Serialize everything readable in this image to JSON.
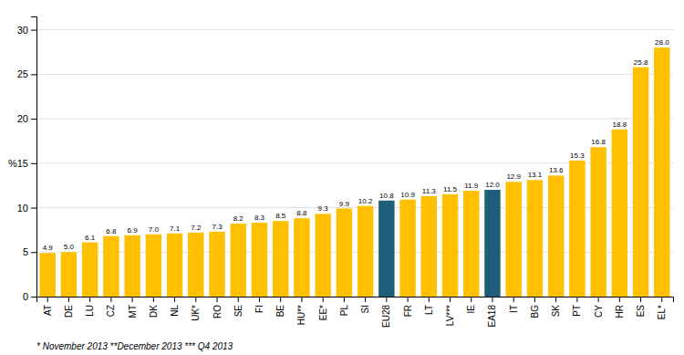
{
  "chart_data": {
    "type": "bar",
    "categories": [
      "AT",
      "DE",
      "LU",
      "CZ",
      "MT",
      "DK",
      "NL",
      "UK*",
      "RO",
      "SE",
      "FI",
      "BE",
      "HU**",
      "EE*",
      "PL",
      "SI",
      "EU28",
      "FR",
      "LT",
      "LV***",
      "IE",
      "EA18",
      "IT",
      "BG",
      "SK",
      "PT",
      "CY",
      "HR",
      "ES",
      "EL*"
    ],
    "values": [
      4.9,
      5.0,
      6.1,
      6.8,
      6.9,
      7.0,
      7.1,
      7.2,
      7.3,
      8.2,
      8.3,
      8.5,
      8.8,
      9.3,
      9.9,
      10.2,
      10.8,
      10.9,
      11.3,
      11.5,
      11.9,
      12.0,
      12.9,
      13.1,
      13.6,
      15.3,
      16.8,
      18.8,
      25.8,
      28.0
    ],
    "value_labels": [
      "4.9",
      "5.0",
      "6.1",
      "6.8",
      "6.9",
      "7.0",
      "7.1",
      "7.2",
      "7.3",
      "8.2",
      "8.3",
      "8.5",
      "8.8",
      "9.3",
      "9.9",
      "10.2",
      "10.8",
      "10.9",
      "11.3",
      "11.5",
      "11.9",
      "12.0",
      "12.9",
      "13.1",
      "13.6",
      "15.3",
      "16.8",
      "18.8",
      "25.8",
      "28.0"
    ],
    "colors": [
      "#FFC000",
      "#FFC000",
      "#FFC000",
      "#FFC000",
      "#FFC000",
      "#FFC000",
      "#FFC000",
      "#FFC000",
      "#FFC000",
      "#FFC000",
      "#FFC000",
      "#FFC000",
      "#FFC000",
      "#FFC000",
      "#FFC000",
      "#FFC000",
      "#1F5E7A",
      "#FFC000",
      "#FFC000",
      "#FFC000",
      "#FFC000",
      "#1F5E7A",
      "#FFC000",
      "#FFC000",
      "#FFC000",
      "#FFC000",
      "#FFC000",
      "#FFC000",
      "#FFC000",
      "#FFC000"
    ],
    "ylim": [
      0,
      31.5
    ],
    "yticks": [
      0,
      5,
      10,
      {
        "value": 15,
        "label": "%15"
      },
      20,
      25,
      30
    ],
    "grid": true,
    "data_labels": true,
    "annotations": [
      "* November 2013    **December 2013    *** Q4 2013"
    ]
  }
}
